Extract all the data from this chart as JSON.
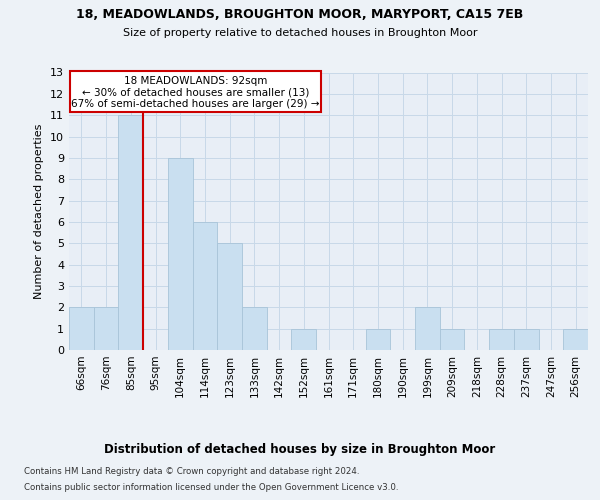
{
  "title_line1": "18, MEADOWLANDS, BROUGHTON MOOR, MARYPORT, CA15 7EB",
  "title_line2": "Size of property relative to detached houses in Broughton Moor",
  "xlabel": "Distribution of detached houses by size in Broughton Moor",
  "ylabel": "Number of detached properties",
  "bin_labels": [
    "66sqm",
    "76sqm",
    "85sqm",
    "95sqm",
    "104sqm",
    "114sqm",
    "123sqm",
    "133sqm",
    "142sqm",
    "152sqm",
    "161sqm",
    "171sqm",
    "180sqm",
    "190sqm",
    "199sqm",
    "209sqm",
    "218sqm",
    "228sqm",
    "237sqm",
    "247sqm",
    "256sqm"
  ],
  "bar_heights": [
    2,
    2,
    11,
    0,
    9,
    6,
    5,
    2,
    0,
    1,
    0,
    0,
    1,
    0,
    2,
    1,
    0,
    1,
    1,
    0,
    1
  ],
  "bar_color": "#c9dff0",
  "bar_edge_color": "#a8c4d8",
  "grid_color": "#c8d8e8",
  "property_line_label": "18 MEADOWLANDS: 92sqm",
  "annotation_line2": "← 30% of detached houses are smaller (13)",
  "annotation_line3": "67% of semi-detached houses are larger (29) →",
  "annotation_box_color": "#ffffff",
  "annotation_box_edge": "#cc0000",
  "vline_color": "#cc0000",
  "vline_x_index": 3,
  "ylim": [
    0,
    13
  ],
  "yticks": [
    0,
    1,
    2,
    3,
    4,
    5,
    6,
    7,
    8,
    9,
    10,
    11,
    12,
    13
  ],
  "footer_line1": "Contains HM Land Registry data © Crown copyright and database right 2024.",
  "footer_line2": "Contains public sector information licensed under the Open Government Licence v3.0.",
  "background_color": "#edf2f7",
  "plot_background": "#e8eef6"
}
